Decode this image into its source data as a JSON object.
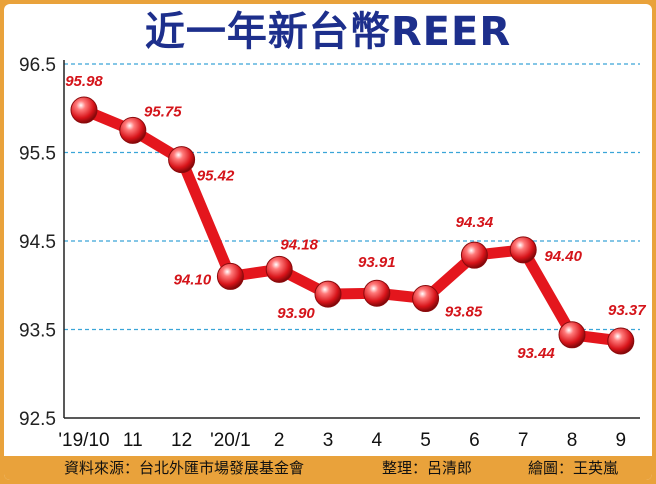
{
  "chart_data": {
    "type": "line",
    "title": "近一年新台幣REER",
    "categories": [
      "'19/10",
      "11",
      "12",
      "'20/1",
      "2",
      "3",
      "4",
      "5",
      "6",
      "7",
      "8",
      "9"
    ],
    "series": [
      {
        "values": [
          95.98,
          95.75,
          95.42,
          94.1,
          94.18,
          93.9,
          93.91,
          93.85,
          94.34,
          94.4,
          93.44,
          93.37
        ]
      }
    ],
    "value_labels": [
      "95.98",
      "95.75",
      "95.42",
      "94.10",
      "94.18",
      "93.90",
      "93.91",
      "93.85",
      "94.34",
      "94.40",
      "93.44",
      "93.37"
    ],
    "ylim": [
      92.5,
      96.5
    ],
    "yticks": [
      92.5,
      93.5,
      94.5,
      95.5,
      96.5
    ],
    "ytick_labels": [
      "92.5",
      "93.5",
      "94.5",
      "95.5",
      "96.5"
    ],
    "xlabel": "",
    "ylabel": "",
    "grid": "horizontal-dashed",
    "colors": {
      "line": "#e4161d",
      "label": "#d4141a",
      "grid": "#3aa5d8",
      "axis": "#222222",
      "title": "#1d2f8c",
      "frame": "#e9a23b"
    }
  },
  "footer": {
    "source": "資料來源：台北外匯市場發展基金會",
    "editor": "整理：呂清郎",
    "artist": "繪圖：王英嵐"
  }
}
